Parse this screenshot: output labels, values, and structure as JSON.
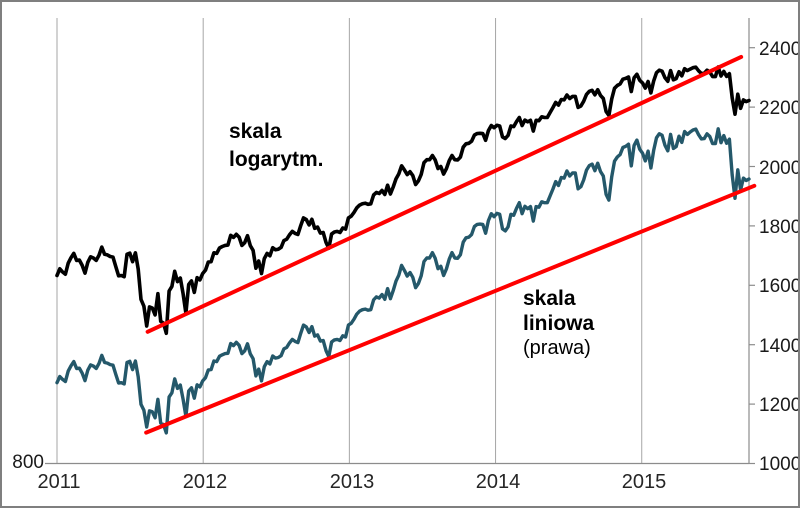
{
  "figure": {
    "background": "#ffffff",
    "border_color": "#7f7f7f"
  },
  "annotations": {
    "log_label_line1": "skala",
    "log_label_line2": "logarytm.",
    "linear_label_line1": "skala",
    "linear_label_line2": "liniowa",
    "linear_label_line3": "(prawa)"
  },
  "chart_data": {
    "type": "line",
    "title": "",
    "description": "Ten sam indeks narysowany dwukrotnie: na skali logarytmicznej (lewa os, czarna linia) i na skali liniowej (prawa os, linia morska), z czerwonymi liniami trendu",
    "x_axis": {
      "ticks": [
        2011,
        2012,
        2013,
        2014,
        2015
      ],
      "start": 2011.0,
      "step_weeks": 1,
      "grid": true
    },
    "left_axis": {
      "scale": "log",
      "min": 800,
      "max": 2400,
      "tick_labels": [
        "800"
      ]
    },
    "right_axis": {
      "scale": "linear",
      "min": 1000,
      "max": 2500,
      "ticks": [
        2400,
        2200,
        2000,
        1800,
        1600,
        1400,
        1200,
        1000
      ]
    },
    "series": [
      {
        "name": "skala logarytm.",
        "axis": "left",
        "color": "#000000",
        "data_name": "sp500-log-line"
      },
      {
        "name": "skala liniowa (prawa)",
        "axis": "right",
        "color": "#24586A",
        "data_name": "sp500-linear-line"
      }
    ],
    "values_weekly": [
      1272,
      1293,
      1283,
      1276,
      1311,
      1329,
      1343,
      1320,
      1321,
      1304,
      1279,
      1314,
      1332,
      1328,
      1320,
      1337,
      1364,
      1340,
      1338,
      1333,
      1331,
      1300,
      1271,
      1272,
      1268,
      1340,
      1344,
      1316,
      1345,
      1292,
      1199,
      1179,
      1123,
      1177,
      1174,
      1154,
      1216,
      1136,
      1131,
      1103,
      1224,
      1238,
      1285,
      1253,
      1264,
      1216,
      1159,
      1244,
      1255,
      1220,
      1265,
      1258,
      1278,
      1289,
      1315,
      1316,
      1345,
      1343,
      1361,
      1366,
      1370,
      1371,
      1404,
      1397,
      1408,
      1398,
      1370,
      1379,
      1403,
      1369,
      1353,
      1295,
      1318,
      1278,
      1326,
      1343,
      1335,
      1362,
      1355,
      1357,
      1363,
      1386,
      1391,
      1406,
      1418,
      1411,
      1407,
      1438,
      1466,
      1460,
      1441,
      1461,
      1429,
      1433,
      1412,
      1414,
      1380,
      1360,
      1409,
      1416,
      1418,
      1414,
      1430,
      1426,
      1466,
      1472,
      1486,
      1503,
      1513,
      1518,
      1520,
      1516,
      1518,
      1551,
      1561,
      1557,
      1569,
      1553,
      1589,
      1555,
      1582,
      1614,
      1634,
      1667,
      1650,
      1631,
      1643,
      1627,
      1592,
      1606,
      1632,
      1680,
      1692,
      1692,
      1710,
      1691,
      1656,
      1664,
      1633,
      1655,
      1688,
      1710,
      1692,
      1691,
      1703,
      1745,
      1760,
      1762,
      1771,
      1798,
      1805,
      1806,
      1805,
      1775,
      1818,
      1841,
      1831,
      1842,
      1839,
      1790,
      1783,
      1797,
      1839,
      1836,
      1859,
      1878,
      1841,
      1866,
      1858,
      1865,
      1816,
      1865,
      1863,
      1881,
      1878,
      1878,
      1901,
      1924,
      1949,
      1936,
      1963,
      1961,
      1985,
      1968,
      1978,
      1978,
      1925,
      1932,
      1955,
      1988,
      2003,
      2008,
      1986,
      2011,
      1983,
      1968,
      1906,
      1887,
      1965,
      2018,
      2032,
      2040,
      2064,
      2068,
      2075,
      2002,
      2071,
      2089,
      2058,
      2045,
      2019,
      2052,
      1995,
      2055,
      2097,
      2110,
      2105,
      2071,
      2053,
      2108,
      2061,
      2067,
      2102,
      2081,
      2118,
      2108,
      2116,
      2123,
      2126,
      2107,
      2093,
      2094,
      2110,
      2101,
      2077,
      2077,
      2127,
      2080,
      2104,
      2078,
      2092,
      1971,
      1893,
      1989,
      1921,
      1961,
      1953,
      1958
    ],
    "trendlines": [
      {
        "name": "trendline-log-scale",
        "axis": "left",
        "x1": 2011.62,
        "v1": 1107,
        "x2": 2015.68,
        "v2": 2180,
        "color": "#FF0000"
      },
      {
        "name": "trendline-linear-scale",
        "axis": "right",
        "x1": 2011.61,
        "v1": 1104,
        "x2": 2015.77,
        "v2": 1935,
        "color": "#FF0000"
      }
    ],
    "colors": {
      "grid": "#a6a6a6",
      "axis": "#8c8c8c",
      "tick_text": "#1a1a1a"
    }
  }
}
